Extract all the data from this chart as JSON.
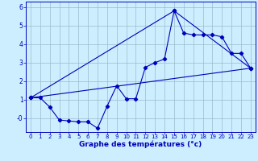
{
  "xlabel": "Graphe des températures (°c)",
  "bg_color": "#cceeff",
  "line_color": "#0000bb",
  "grid_color": "#99bbcc",
  "xlim": [
    -0.5,
    23.5
  ],
  "ylim": [
    -0.75,
    6.3
  ],
  "xticks": [
    0,
    1,
    2,
    3,
    4,
    5,
    6,
    7,
    8,
    9,
    10,
    11,
    12,
    13,
    14,
    15,
    16,
    17,
    18,
    19,
    20,
    21,
    22,
    23
  ],
  "yticks": [
    0,
    1,
    2,
    3,
    4,
    5,
    6
  ],
  "ytick_labels": [
    "-0",
    "1",
    "2",
    "3",
    "4",
    "5",
    "6"
  ],
  "series1_x": [
    0,
    1,
    2,
    3,
    4,
    5,
    6,
    7,
    8,
    9,
    10,
    11,
    12,
    13,
    14,
    15,
    16,
    17,
    18,
    19,
    20,
    21,
    22,
    23
  ],
  "series1_y": [
    1.1,
    1.1,
    0.6,
    -0.1,
    -0.15,
    -0.2,
    -0.2,
    -0.55,
    0.65,
    1.75,
    1.05,
    1.05,
    2.75,
    3.0,
    3.2,
    5.8,
    4.6,
    4.5,
    4.5,
    4.5,
    4.4,
    3.5,
    3.5,
    2.7
  ],
  "series2_x": [
    0,
    23
  ],
  "series2_y": [
    1.1,
    2.7
  ],
  "series3_x": [
    0,
    15,
    23
  ],
  "series3_y": [
    1.1,
    5.8,
    2.7
  ]
}
